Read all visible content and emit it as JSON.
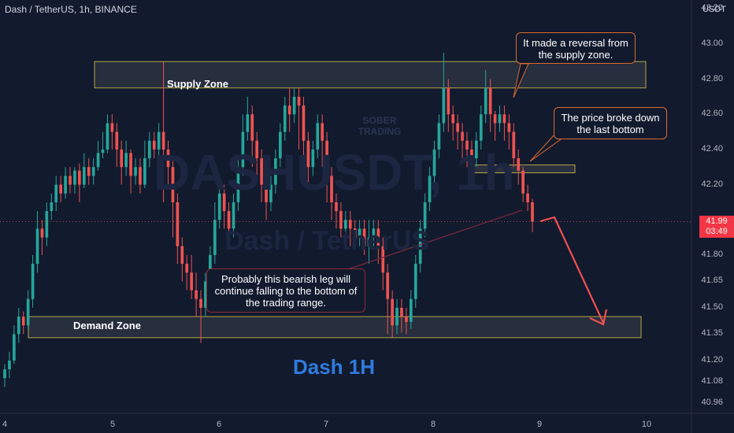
{
  "header": {
    "symbol": "Dash / TetherUS, 1h, BINANCE",
    "currency": "USDT"
  },
  "watermark": {
    "ticker": "DASHUSDT, 1h",
    "name": "Dash / TetherUS",
    "brand": "SOBER TRADING"
  },
  "title": "Dash 1H",
  "price_tag": {
    "price": "41.99",
    "countdown": "03:49"
  },
  "annotations": {
    "supply_zone": "Supply Zone",
    "demand_zone": "Demand Zone",
    "reversal": "It made a reversal from the supply zone.",
    "breakdown": "The price broke down the last bottom",
    "bearish_leg": "Probably this bearish leg will continue falling to the bottom of the trading range."
  },
  "colors": {
    "background": "#121a2e",
    "bullish": "#26a69a",
    "bearish": "#ef5350",
    "zone_border": "#b5a642",
    "bubble_border": "#d96a2b",
    "projection": "#f05050",
    "title": "#2f7bde"
  },
  "chart_data": {
    "type": "candlestick",
    "title": "Dash 1H",
    "x_ticks": [
      "4",
      "5",
      "6",
      "7",
      "8",
      "9",
      "10"
    ],
    "y_ticks": [
      "43.20",
      "43.00",
      "42.80",
      "42.60",
      "42.40",
      "42.20",
      "41.99",
      "41.80",
      "41.65",
      "41.50",
      "41.35",
      "41.20",
      "41.08",
      "40.96"
    ],
    "ylim": [
      40.9,
      43.25
    ],
    "last_price": 41.99,
    "zones": [
      {
        "name": "Supply Zone",
        "low": 42.75,
        "high": 42.9
      },
      {
        "name": "Demand Zone",
        "low": 41.33,
        "high": 41.45
      }
    ],
    "breakdown_level": 42.29,
    "projection": [
      42.03,
      41.39
    ],
    "candles": [
      [
        41.1,
        41.15,
        41.05,
        41.18
      ],
      [
        41.15,
        41.2,
        41.1,
        41.25
      ],
      [
        41.2,
        41.35,
        41.18,
        41.4
      ],
      [
        41.35,
        41.45,
        41.3,
        41.5
      ],
      [
        41.45,
        41.4,
        41.35,
        41.48
      ],
      [
        41.4,
        41.55,
        41.38,
        41.6
      ],
      [
        41.55,
        41.75,
        41.5,
        41.8
      ],
      [
        41.75,
        41.95,
        41.7,
        42.05
      ],
      [
        41.95,
        41.9,
        41.8,
        42.0
      ],
      [
        41.9,
        42.05,
        41.85,
        42.1
      ],
      [
        42.05,
        42.1,
        42.0,
        42.15
      ],
      [
        42.1,
        42.2,
        42.05,
        42.25
      ],
      [
        42.2,
        42.15,
        42.1,
        42.25
      ],
      [
        42.15,
        42.25,
        42.12,
        42.3
      ],
      [
        42.25,
        42.2,
        42.15,
        42.3
      ],
      [
        42.2,
        42.28,
        42.15,
        42.3
      ],
      [
        42.28,
        42.2,
        42.1,
        42.32
      ],
      [
        42.2,
        42.3,
        42.18,
        42.38
      ],
      [
        42.3,
        42.25,
        42.2,
        42.35
      ],
      [
        42.25,
        42.3,
        42.2,
        42.35
      ],
      [
        42.3,
        42.38,
        42.28,
        42.45
      ],
      [
        42.38,
        42.4,
        42.35,
        42.5
      ],
      [
        42.4,
        42.55,
        42.38,
        42.6
      ],
      [
        42.55,
        42.5,
        42.4,
        42.6
      ],
      [
        42.5,
        42.4,
        42.3,
        42.55
      ],
      [
        42.4,
        42.3,
        42.2,
        42.45
      ],
      [
        42.3,
        42.38,
        42.25,
        42.45
      ],
      [
        42.38,
        42.25,
        42.15,
        42.4
      ],
      [
        42.25,
        42.3,
        42.2,
        42.35
      ],
      [
        42.3,
        42.2,
        42.15,
        42.35
      ],
      [
        42.2,
        42.35,
        42.18,
        42.45
      ],
      [
        42.35,
        42.45,
        42.3,
        42.5
      ],
      [
        42.45,
        42.4,
        42.35,
        42.5
      ],
      [
        42.4,
        42.5,
        42.35,
        42.55
      ],
      [
        42.5,
        42.4,
        42.1,
        42.9
      ],
      [
        42.4,
        42.3,
        42.2,
        42.45
      ],
      [
        42.3,
        42.1,
        41.9,
        42.35
      ],
      [
        42.1,
        41.85,
        41.75,
        42.15
      ],
      [
        41.85,
        41.75,
        41.65,
        41.9
      ],
      [
        41.75,
        41.7,
        41.6,
        41.8
      ],
      [
        41.7,
        41.6,
        41.55,
        41.8
      ],
      [
        41.6,
        41.55,
        41.45,
        41.7
      ],
      [
        41.55,
        41.5,
        41.3,
        41.6
      ],
      [
        41.5,
        41.65,
        41.45,
        41.7
      ],
      [
        41.65,
        41.8,
        41.6,
        41.85
      ],
      [
        41.8,
        42.0,
        41.75,
        42.1
      ],
      [
        42.0,
        42.15,
        41.95,
        42.2
      ],
      [
        42.15,
        42.05,
        41.95,
        42.2
      ],
      [
        42.05,
        41.95,
        41.85,
        42.1
      ],
      [
        41.95,
        42.1,
        41.9,
        42.15
      ],
      [
        42.1,
        42.3,
        42.05,
        42.35
      ],
      [
        42.3,
        42.5,
        42.25,
        42.6
      ],
      [
        42.5,
        42.6,
        42.45,
        42.7
      ],
      [
        42.6,
        42.45,
        42.3,
        42.65
      ],
      [
        42.45,
        42.35,
        42.25,
        42.5
      ],
      [
        42.35,
        42.2,
        42.1,
        42.4
      ],
      [
        42.2,
        42.1,
        42.0,
        42.25
      ],
      [
        42.1,
        42.2,
        42.05,
        42.25
      ],
      [
        42.2,
        42.35,
        42.15,
        42.4
      ],
      [
        42.35,
        42.5,
        42.3,
        42.55
      ],
      [
        42.5,
        42.65,
        42.45,
        42.7
      ],
      [
        42.65,
        42.6,
        42.5,
        42.75
      ],
      [
        42.6,
        42.7,
        42.55,
        42.75
      ],
      [
        42.7,
        42.65,
        42.4,
        42.75
      ],
      [
        42.65,
        42.45,
        42.3,
        42.7
      ],
      [
        42.45,
        42.3,
        42.2,
        42.5
      ],
      [
        42.3,
        42.4,
        42.25,
        42.45
      ],
      [
        42.4,
        42.55,
        42.35,
        42.6
      ],
      [
        42.55,
        42.45,
        42.3,
        42.6
      ],
      [
        42.45,
        42.25,
        42.1,
        42.5
      ],
      [
        42.25,
        42.1,
        42.0,
        42.3
      ],
      [
        42.1,
        42.05,
        41.95,
        42.15
      ],
      [
        42.05,
        41.95,
        41.9,
        42.1
      ],
      [
        41.95,
        42.0,
        41.9,
        42.05
      ],
      [
        42.0,
        41.95,
        41.85,
        42.05
      ],
      [
        41.95,
        41.9,
        41.85,
        42.0
      ],
      [
        41.9,
        41.95,
        41.85,
        42.0
      ],
      [
        41.95,
        41.85,
        41.8,
        42.0
      ],
      [
        41.85,
        41.9,
        41.75,
        42.0
      ],
      [
        41.9,
        41.95,
        41.85,
        42.0
      ],
      [
        41.95,
        41.85,
        41.75,
        42.0
      ],
      [
        41.85,
        41.7,
        41.6,
        41.9
      ],
      [
        41.7,
        41.55,
        41.35,
        41.75
      ],
      [
        41.55,
        41.4,
        41.33,
        41.6
      ],
      [
        41.4,
        41.5,
        41.35,
        41.55
      ],
      [
        41.5,
        41.45,
        41.36,
        41.55
      ],
      [
        41.45,
        41.42,
        41.35,
        41.5
      ],
      [
        41.42,
        41.55,
        41.38,
        41.6
      ],
      [
        41.55,
        41.75,
        41.5,
        41.8
      ],
      [
        41.75,
        41.95,
        41.7,
        42.0
      ],
      [
        41.95,
        42.1,
        41.9,
        42.15
      ],
      [
        42.1,
        42.25,
        42.05,
        42.3
      ],
      [
        42.25,
        42.4,
        42.2,
        42.45
      ],
      [
        42.4,
        42.55,
        42.35,
        42.6
      ],
      [
        42.55,
        42.75,
        42.5,
        42.95
      ],
      [
        42.75,
        42.6,
        42.5,
        42.8
      ],
      [
        42.6,
        42.55,
        42.45,
        42.65
      ],
      [
        42.55,
        42.5,
        42.4,
        42.6
      ],
      [
        42.5,
        42.45,
        42.35,
        42.55
      ],
      [
        42.45,
        42.4,
        42.3,
        42.5
      ],
      [
        42.4,
        42.35,
        42.28,
        42.45
      ],
      [
        42.35,
        42.45,
        42.3,
        42.5
      ],
      [
        42.45,
        42.6,
        42.4,
        42.65
      ],
      [
        42.6,
        42.75,
        42.55,
        42.85
      ],
      [
        42.75,
        42.6,
        42.5,
        42.8
      ],
      [
        42.6,
        42.55,
        42.45,
        42.62
      ],
      [
        42.55,
        42.6,
        42.5,
        42.65
      ],
      [
        42.6,
        42.55,
        42.45,
        42.65
      ],
      [
        42.55,
        42.5,
        42.4,
        42.6
      ],
      [
        42.5,
        42.35,
        42.3,
        42.55
      ],
      [
        42.35,
        42.28,
        42.2,
        42.4
      ],
      [
        42.28,
        42.15,
        42.1,
        42.3
      ],
      [
        42.15,
        42.1,
        42.05,
        42.2
      ],
      [
        42.1,
        41.99,
        41.93,
        42.12
      ]
    ]
  }
}
